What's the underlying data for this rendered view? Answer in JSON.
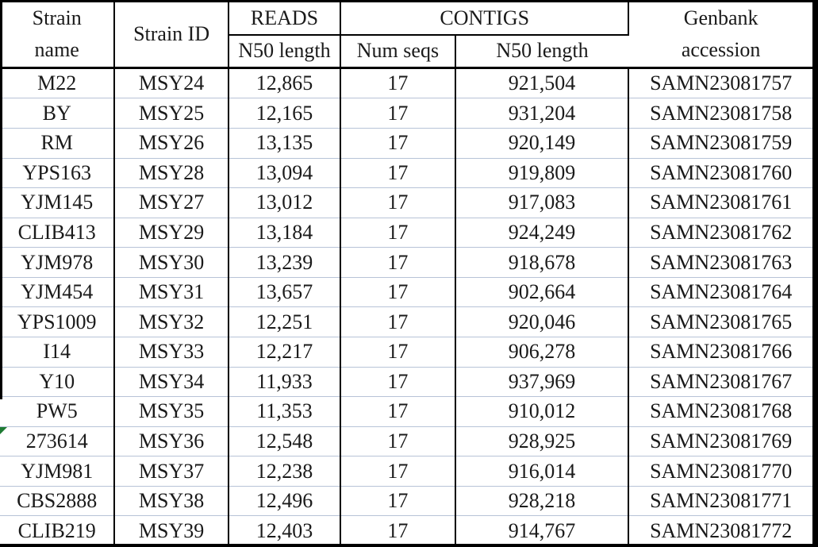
{
  "table": {
    "header": {
      "strain_name": "Strain name",
      "strain_id": "Strain ID",
      "reads_group": "READS",
      "reads_n50": "N50 length",
      "contigs_group": "CONTIGS",
      "contigs_num_seqs": "Num seqs",
      "contigs_n50": "N50 length",
      "genbank": "Genbank accession"
    },
    "rows": [
      {
        "strain_name": "M22",
        "strain_id": "MSY24",
        "reads_n50": "12,865",
        "num_seqs": "17",
        "contigs_n50": "921,504",
        "genbank": "SAMN23081757",
        "corner_marker": false
      },
      {
        "strain_name": "BY",
        "strain_id": "MSY25",
        "reads_n50": "12,165",
        "num_seqs": "17",
        "contigs_n50": "931,204",
        "genbank": "SAMN23081758",
        "corner_marker": false
      },
      {
        "strain_name": "RM",
        "strain_id": "MSY26",
        "reads_n50": "13,135",
        "num_seqs": "17",
        "contigs_n50": "920,149",
        "genbank": "SAMN23081759",
        "corner_marker": false
      },
      {
        "strain_name": "YPS163",
        "strain_id": "MSY28",
        "reads_n50": "13,094",
        "num_seqs": "17",
        "contigs_n50": "919,809",
        "genbank": "SAMN23081760",
        "corner_marker": false
      },
      {
        "strain_name": "YJM145",
        "strain_id": "MSY27",
        "reads_n50": "13,012",
        "num_seqs": "17",
        "contigs_n50": "917,083",
        "genbank": "SAMN23081761",
        "corner_marker": false
      },
      {
        "strain_name": "CLIB413",
        "strain_id": "MSY29",
        "reads_n50": "13,184",
        "num_seqs": "17",
        "contigs_n50": "924,249",
        "genbank": "SAMN23081762",
        "corner_marker": false
      },
      {
        "strain_name": "YJM978",
        "strain_id": "MSY30",
        "reads_n50": "13,239",
        "num_seqs": "17",
        "contigs_n50": "918,678",
        "genbank": "SAMN23081763",
        "corner_marker": false
      },
      {
        "strain_name": "YJM454",
        "strain_id": "MSY31",
        "reads_n50": "13,657",
        "num_seqs": "17",
        "contigs_n50": "902,664",
        "genbank": "SAMN23081764",
        "corner_marker": false
      },
      {
        "strain_name": "YPS1009",
        "strain_id": "MSY32",
        "reads_n50": "12,251",
        "num_seqs": "17",
        "contigs_n50": "920,046",
        "genbank": "SAMN23081765",
        "corner_marker": false
      },
      {
        "strain_name": "I14",
        "strain_id": "MSY33",
        "reads_n50": "12,217",
        "num_seqs": "17",
        "contigs_n50": "906,278",
        "genbank": "SAMN23081766",
        "corner_marker": false
      },
      {
        "strain_name": "Y10",
        "strain_id": "MSY34",
        "reads_n50": "11,933",
        "num_seqs": "17",
        "contigs_n50": "937,969",
        "genbank": "SAMN23081767",
        "corner_marker": false
      },
      {
        "strain_name": "PW5",
        "strain_id": "MSY35",
        "reads_n50": "11,353",
        "num_seqs": "17",
        "contigs_n50": "910,012",
        "genbank": "SAMN23081768",
        "corner_marker": false
      },
      {
        "strain_name": "273614",
        "strain_id": "MSY36",
        "reads_n50": "12,548",
        "num_seqs": "17",
        "contigs_n50": "928,925",
        "genbank": "SAMN23081769",
        "corner_marker": true
      },
      {
        "strain_name": "YJM981",
        "strain_id": "MSY37",
        "reads_n50": "12,238",
        "num_seqs": "17",
        "contigs_n50": "916,014",
        "genbank": "SAMN23081770",
        "corner_marker": false
      },
      {
        "strain_name": "CBS2888",
        "strain_id": "MSY38",
        "reads_n50": "12,496",
        "num_seqs": "17",
        "contigs_n50": "928,218",
        "genbank": "SAMN23081771",
        "corner_marker": false
      },
      {
        "strain_name": "CLIB219",
        "strain_id": "MSY39",
        "reads_n50": "12,403",
        "num_seqs": "17",
        "contigs_n50": "914,767",
        "genbank": "SAMN23081772",
        "corner_marker": false
      }
    ]
  },
  "colors": {
    "border_black": "#000000",
    "row_separator": "#b7c3d7",
    "text": "#1a1a1a",
    "corner_marker_green": "#1e7b33",
    "background": "#ffffff"
  }
}
